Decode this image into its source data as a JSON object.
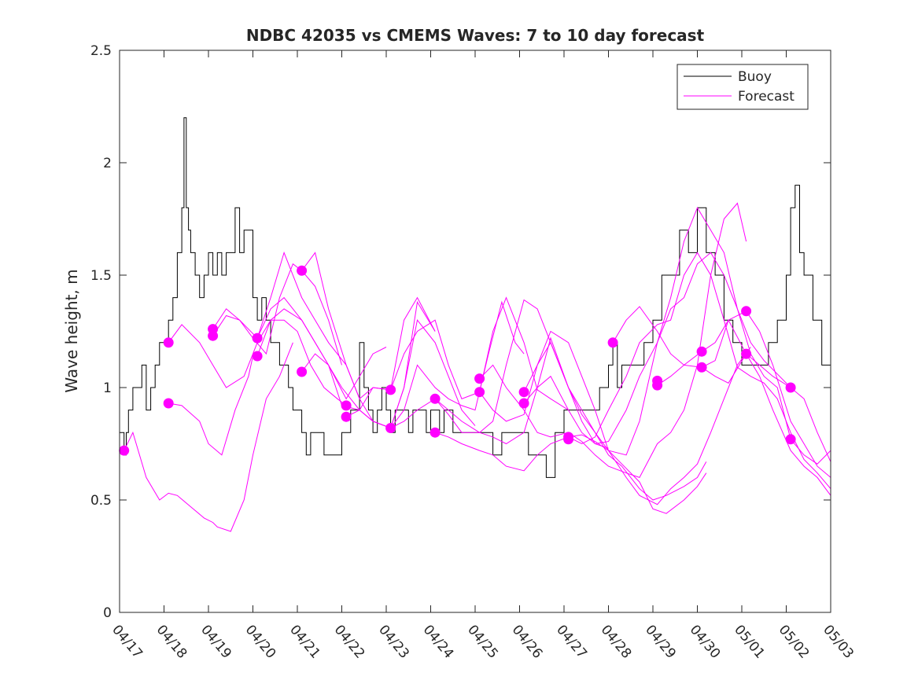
{
  "chart_data": {
    "type": "line",
    "title": "NDBC 42035 vs CMEMS Waves: 7 to 10 day forecast",
    "xlabel": "",
    "ylabel": "Wave height, m",
    "xlim": [
      "04/17",
      "05/03"
    ],
    "ylim": [
      0,
      2.5
    ],
    "x_tick_labels": [
      "04/17",
      "04/18",
      "04/19",
      "04/20",
      "04/21",
      "04/22",
      "04/23",
      "04/24",
      "04/25",
      "04/26",
      "04/27",
      "04/28",
      "04/29",
      "04/30",
      "05/01",
      "05/02",
      "05/03"
    ],
    "y_tick_labels": [
      "0",
      "0.5",
      "1",
      "1.5",
      "2",
      "2.5"
    ],
    "y_ticks": [
      0,
      0.5,
      1,
      1.5,
      2,
      2.5
    ],
    "x_unit": "days since 04/17 00:00",
    "legend": {
      "placement": "top-right",
      "entries": [
        "Buoy",
        "Forecast"
      ]
    },
    "colors": {
      "buoy": "#000000",
      "forecast": "#ff00ff",
      "axis": "#262626"
    },
    "series": [
      {
        "name": "Buoy",
        "x": [
          0.0,
          0.1,
          0.15,
          0.2,
          0.3,
          0.4,
          0.5,
          0.6,
          0.7,
          0.8,
          0.9,
          1.0,
          1.1,
          1.2,
          1.3,
          1.4,
          1.45,
          1.5,
          1.55,
          1.6,
          1.7,
          1.8,
          1.9,
          2.0,
          2.1,
          2.2,
          2.3,
          2.4,
          2.5,
          2.6,
          2.7,
          2.8,
          2.9,
          3.0,
          3.1,
          3.2,
          3.3,
          3.4,
          3.5,
          3.6,
          3.7,
          3.8,
          3.9,
          4.0,
          4.1,
          4.2,
          4.3,
          4.4,
          4.5,
          4.6,
          4.7,
          4.8,
          4.9,
          5.0,
          5.1,
          5.2,
          5.3,
          5.4,
          5.5,
          5.6,
          5.7,
          5.8,
          5.9,
          6.0,
          6.1,
          6.2,
          6.3,
          6.4,
          6.5,
          6.6,
          6.7,
          6.8,
          6.9,
          7.0,
          7.1,
          7.2,
          7.3,
          7.4,
          7.5,
          7.6,
          7.7,
          7.8,
          7.9,
          8.0,
          8.2,
          8.4,
          8.6,
          8.8,
          9.0,
          9.2,
          9.4,
          9.6,
          9.8,
          10.0,
          10.2,
          10.4,
          10.6,
          10.8,
          11.0,
          11.1,
          11.2,
          11.3,
          11.4,
          11.6,
          11.8,
          12.0,
          12.2,
          12.4,
          12.6,
          12.8,
          13.0,
          13.2,
          13.4,
          13.6,
          13.8,
          14.0,
          14.2,
          14.4,
          14.6,
          14.8,
          15.0,
          15.1,
          15.2,
          15.3,
          15.4,
          15.6,
          15.8,
          16.0
        ],
        "y": [
          0.8,
          0.7,
          0.8,
          0.9,
          1.0,
          1.0,
          1.1,
          0.9,
          1.0,
          1.1,
          1.2,
          1.2,
          1.3,
          1.4,
          1.6,
          1.8,
          2.2,
          1.8,
          1.7,
          1.6,
          1.5,
          1.4,
          1.5,
          1.6,
          1.5,
          1.6,
          1.5,
          1.6,
          1.6,
          1.8,
          1.6,
          1.7,
          1.7,
          1.4,
          1.3,
          1.4,
          1.3,
          1.2,
          1.2,
          1.1,
          1.1,
          1.0,
          0.9,
          0.9,
          0.8,
          0.7,
          0.8,
          0.8,
          0.8,
          0.7,
          0.7,
          0.7,
          0.7,
          0.8,
          0.8,
          0.9,
          0.9,
          1.2,
          1.0,
          0.9,
          0.8,
          0.9,
          1.0,
          0.9,
          0.8,
          0.9,
          0.9,
          0.9,
          0.8,
          0.9,
          0.9,
          0.9,
          0.8,
          0.9,
          0.9,
          0.8,
          0.9,
          0.9,
          0.8,
          0.8,
          0.8,
          0.8,
          0.8,
          0.8,
          0.8,
          0.7,
          0.8,
          0.8,
          0.8,
          0.7,
          0.7,
          0.6,
          0.8,
          0.9,
          0.9,
          0.9,
          0.9,
          1.0,
          1.1,
          1.2,
          1.0,
          1.1,
          1.1,
          1.1,
          1.2,
          1.3,
          1.5,
          1.5,
          1.7,
          1.6,
          1.8,
          1.6,
          1.5,
          1.3,
          1.2,
          1.1,
          1.1,
          1.1,
          1.2,
          1.3,
          1.5,
          1.8,
          1.9,
          1.6,
          1.5,
          1.3,
          1.1,
          1.1
        ]
      },
      {
        "name": "Forecast",
        "x": [
          0.1,
          0.3,
          0.6,
          0.9,
          1.1,
          1.3,
          1.6,
          1.9,
          2.1,
          2.2,
          2.5,
          2.8,
          3.0,
          3.3,
          3.6,
          3.9
        ],
        "y": [
          0.72,
          0.8,
          0.6,
          0.5,
          0.53,
          0.52,
          0.47,
          0.42,
          0.4,
          0.38,
          0.36,
          0.5,
          0.7,
          0.95,
          1.05,
          1.2
        ]
      },
      {
        "name": "",
        "x": [
          1.1,
          1.4,
          1.8,
          2.0,
          2.3,
          2.6,
          2.9,
          3.0
        ],
        "y": [
          0.93,
          0.92,
          0.85,
          0.75,
          0.7,
          0.9,
          1.05,
          1.14
        ]
      },
      {
        "name": "",
        "x": [
          1.1,
          1.4,
          1.8,
          2.1,
          2.4,
          2.8,
          3.1,
          3.4,
          3.7,
          4.0,
          4.3,
          4.6,
          4.9,
          5.1
        ],
        "y": [
          1.2,
          1.28,
          1.2,
          1.1,
          1.0,
          1.05,
          1.2,
          1.3,
          1.3,
          1.25,
          1.1,
          1.0,
          0.95,
          0.92
        ]
      },
      {
        "name": "",
        "x": [
          2.1,
          2.4,
          2.7,
          3.0,
          3.3,
          3.6,
          3.9,
          4.1,
          4.4,
          4.7,
          5.0
        ],
        "y": [
          1.26,
          1.35,
          1.3,
          1.22,
          1.15,
          1.4,
          1.55,
          1.52,
          1.45,
          1.3,
          1.1
        ]
      },
      {
        "name": "",
        "x": [
          2.1,
          2.4,
          2.7,
          3.1,
          3.4,
          3.7,
          4.1,
          4.4,
          4.7,
          5.1,
          5.4,
          5.7,
          6.0
        ],
        "y": [
          1.23,
          1.32,
          1.3,
          1.22,
          1.35,
          1.4,
          1.3,
          1.2,
          1.1,
          0.95,
          1.05,
          1.15,
          1.18
        ]
      },
      {
        "name": "",
        "x": [
          3.1,
          3.4,
          3.7,
          4.1,
          4.4,
          4.7,
          5.1,
          5.4,
          5.7,
          6.1,
          6.4,
          6.7,
          7.1
        ],
        "y": [
          1.22,
          1.4,
          1.6,
          1.4,
          1.3,
          1.2,
          1.1,
          0.95,
          1.0,
          0.99,
          1.3,
          1.4,
          1.25
        ]
      },
      {
        "name": "",
        "x": [
          3.1,
          3.4,
          3.7,
          4.1,
          4.4,
          4.7,
          5.0,
          5.4,
          5.7,
          6.1,
          6.4,
          6.7,
          7.1
        ],
        "y": [
          1.14,
          1.3,
          1.35,
          1.3,
          1.2,
          1.1,
          0.92,
          0.9,
          0.85,
          0.82,
          1.0,
          1.38,
          1.25
        ]
      },
      {
        "name": "",
        "x": [
          4.1,
          4.4,
          4.7,
          5.1,
          5.4,
          5.7,
          6.1,
          6.4,
          6.7,
          7.1,
          7.4,
          7.7,
          8.0
        ],
        "y": [
          1.52,
          1.6,
          1.35,
          1.1,
          0.95,
          0.85,
          0.82,
          1.0,
          1.3,
          1.2,
          1.05,
          0.9,
          0.83
        ]
      },
      {
        "name": "",
        "x": [
          4.1,
          4.4,
          4.7,
          5.0,
          5.4,
          5.7,
          6.1,
          6.4,
          6.7,
          7.1,
          7.4,
          7.7,
          8.0,
          8.3,
          8.6,
          8.9,
          9.1
        ],
        "y": [
          1.07,
          1.15,
          1.1,
          1.0,
          0.9,
          0.85,
          0.82,
          0.9,
          1.1,
          1.0,
          0.95,
          0.92,
          0.9,
          1.15,
          1.38,
          1.2,
          1.15
        ]
      },
      {
        "name": "",
        "x": [
          5.1,
          5.4,
          5.7,
          6.1,
          6.4,
          6.7,
          7.1,
          7.4,
          7.7,
          8.1,
          8.4,
          8.7,
          9.1,
          9.4,
          9.7,
          10.1
        ],
        "y": [
          0.87,
          0.9,
          1.0,
          0.99,
          1.15,
          1.25,
          1.3,
          1.1,
          0.95,
          0.98,
          1.25,
          1.4,
          1.2,
          0.99,
          0.95,
          0.9
        ]
      },
      {
        "name": "",
        "x": [
          6.1,
          6.4,
          6.7,
          7.1,
          7.4,
          7.7,
          8.1,
          8.4,
          8.7,
          9.1,
          9.4,
          9.7,
          10.1,
          10.4,
          10.7,
          11.0
        ],
        "y": [
          0.82,
          0.85,
          0.9,
          0.95,
          0.9,
          0.85,
          0.8,
          0.85,
          1.1,
          1.39,
          1.35,
          1.2,
          1.0,
          0.85,
          0.75,
          0.73
        ]
      },
      {
        "name": "",
        "x": [
          7.1,
          7.4,
          7.7,
          8.1,
          8.4,
          8.7,
          9.1,
          9.4,
          9.7,
          10.1,
          10.4,
          10.7,
          11.0,
          11.3,
          11.7,
          12.0,
          12.3,
          12.7,
          13.0,
          13.2
        ],
        "y": [
          0.95,
          0.88,
          0.8,
          0.8,
          0.78,
          0.75,
          0.8,
          1.0,
          1.22,
          1.0,
          0.9,
          0.8,
          0.7,
          0.65,
          0.55,
          0.5,
          0.52,
          0.56,
          0.6,
          0.67
        ]
      },
      {
        "name": "",
        "x": [
          7.1,
          7.4,
          7.7,
          8.1,
          8.4,
          8.7,
          9.1,
          9.4,
          9.7,
          10.1,
          10.4,
          10.7,
          11.0,
          11.3,
          11.7,
          12.0,
          12.3,
          12.7,
          13.0,
          13.2
        ],
        "y": [
          0.8,
          0.78,
          0.75,
          0.72,
          0.7,
          0.65,
          0.63,
          0.7,
          0.75,
          0.78,
          0.79,
          0.76,
          0.72,
          0.66,
          0.58,
          0.46,
          0.44,
          0.5,
          0.56,
          0.62
        ]
      },
      {
        "name": "",
        "x": [
          8.1,
          8.4,
          8.7,
          9.1,
          9.4,
          9.7,
          10.1,
          10.4,
          10.7,
          11.0,
          11.4,
          11.7,
          12.1,
          12.4,
          12.7,
          13.0,
          13.3,
          13.6,
          13.9,
          14.1
        ],
        "y": [
          1.04,
          1.1,
          1.0,
          0.9,
          0.8,
          0.78,
          0.8,
          0.76,
          0.7,
          0.65,
          0.62,
          0.6,
          0.75,
          0.8,
          0.9,
          1.1,
          1.5,
          1.75,
          1.82,
          1.65
        ]
      },
      {
        "name": "",
        "x": [
          8.1,
          8.4,
          8.7,
          9.1,
          9.4,
          9.7,
          10.1,
          10.4,
          10.7,
          11.0,
          11.4,
          11.7,
          12.1,
          12.4,
          12.7,
          13.0,
          13.3,
          13.6,
          13.9,
          14.2
        ],
        "y": [
          0.98,
          0.9,
          0.85,
          0.88,
          1.1,
          1.25,
          1.2,
          1.05,
          0.9,
          0.72,
          0.6,
          0.52,
          0.48,
          0.55,
          0.6,
          0.66,
          0.8,
          0.95,
          1.1,
          1.18
        ]
      },
      {
        "name": "",
        "x": [
          9.1,
          9.4,
          9.7,
          10.1,
          10.4,
          10.7,
          11.0,
          11.4,
          11.7,
          12.1,
          12.4,
          12.7,
          13.0,
          13.3,
          13.6,
          13.9,
          14.2,
          14.5,
          14.8,
          15.1
        ],
        "y": [
          0.98,
          1.1,
          1.2,
          1.0,
          0.88,
          0.8,
          0.72,
          0.7,
          0.85,
          1.2,
          1.35,
          1.4,
          1.55,
          1.6,
          1.5,
          1.35,
          1.2,
          1.12,
          1.06,
          1.0
        ]
      },
      {
        "name": "",
        "x": [
          9.1,
          9.4,
          9.7,
          10.1,
          10.4,
          10.7,
          11.0,
          11.4,
          11.7,
          12.1,
          12.4,
          12.7,
          13.0,
          13.3,
          13.6,
          13.9,
          14.2,
          14.5,
          14.8,
          15.1,
          15.4,
          15.7,
          16.0
        ],
        "y": [
          0.93,
          1.0,
          1.05,
          0.9,
          0.8,
          0.75,
          0.76,
          0.9,
          1.05,
          1.2,
          1.4,
          1.65,
          1.8,
          1.7,
          1.6,
          1.35,
          1.15,
          1.05,
          1.0,
          0.77,
          0.7,
          0.66,
          0.72
        ]
      },
      {
        "name": "",
        "x": [
          10.1,
          10.4,
          10.7,
          11.0,
          11.4,
          11.7,
          12.1,
          12.4,
          12.7,
          13.0,
          13.3,
          13.6,
          13.9,
          14.2,
          14.5,
          14.8,
          15.1,
          15.4,
          15.7,
          16.0
        ],
        "y": [
          0.78,
          0.75,
          0.78,
          0.9,
          1.05,
          1.2,
          1.28,
          1.3,
          1.5,
          1.6,
          1.5,
          1.3,
          1.09,
          1.05,
          1.02,
          0.95,
          0.8,
          0.68,
          0.62,
          0.55
        ]
      },
      {
        "name": "",
        "x": [
          11.1,
          11.4,
          11.7,
          12.1,
          12.4,
          12.7,
          13.1,
          13.4,
          13.7,
          14.1,
          14.4,
          14.7,
          15.1,
          15.4,
          15.7,
          16.0
        ],
        "y": [
          1.2,
          1.3,
          1.36,
          1.25,
          1.15,
          1.1,
          1.16,
          1.2,
          1.3,
          1.15,
          1.1,
          1.05,
          1.0,
          0.95,
          0.8,
          0.67
        ]
      },
      {
        "name": "",
        "x": [
          12.1,
          12.4,
          12.7,
          13.1,
          13.4,
          13.7,
          14.1,
          14.4,
          14.7,
          15.1,
          15.4,
          15.7,
          16.0
        ],
        "y": [
          1.01,
          1.05,
          1.1,
          1.09,
          1.12,
          1.3,
          1.34,
          1.25,
          1.1,
          0.85,
          0.75,
          0.65,
          0.6
        ]
      },
      {
        "name": "",
        "x": [
          13.1,
          13.4,
          13.7,
          14.1,
          14.4,
          14.7,
          15.1,
          15.4,
          15.7,
          16.0
        ],
        "y": [
          1.09,
          1.05,
          1.02,
          1.15,
          1.05,
          0.9,
          0.72,
          0.65,
          0.6,
          0.52
        ]
      }
    ],
    "forecast_markers": {
      "x": [
        0.1,
        1.1,
        1.1,
        2.1,
        2.1,
        3.1,
        3.1,
        4.1,
        4.1,
        5.1,
        5.1,
        6.1,
        6.1,
        7.1,
        7.1,
        8.1,
        8.1,
        9.1,
        9.1,
        10.1,
        10.1,
        11.1,
        12.1,
        12.1,
        13.1,
        13.1,
        14.1,
        14.1,
        15.1,
        15.1
      ],
      "y": [
        0.72,
        0.93,
        1.2,
        1.26,
        1.23,
        1.22,
        1.14,
        1.52,
        1.07,
        0.92,
        0.87,
        0.99,
        0.82,
        0.95,
        0.8,
        1.04,
        0.98,
        0.98,
        0.93,
        0.78,
        0.77,
        1.2,
        1.03,
        1.01,
        1.16,
        1.09,
        1.34,
        1.15,
        1.0,
        0.77
      ]
    }
  }
}
